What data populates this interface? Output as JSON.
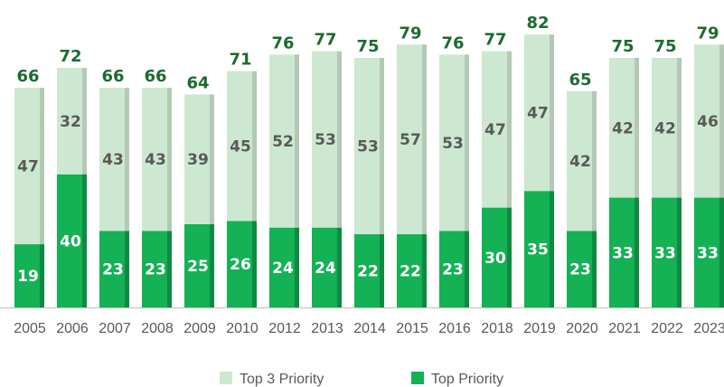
{
  "chart_data": {
    "type": "bar",
    "stacked": true,
    "categories": [
      "2005",
      "2006",
      "2007",
      "2008",
      "2009",
      "2010",
      "2012",
      "2013",
      "2014",
      "2015",
      "2016",
      "2018",
      "2019",
      "2020",
      "2021",
      "2022",
      "2023"
    ],
    "series": [
      {
        "name": "Top Priority",
        "values": [
          19,
          40,
          23,
          23,
          25,
          26,
          24,
          24,
          22,
          22,
          23,
          30,
          35,
          23,
          33,
          33,
          33
        ],
        "color": "#14b155",
        "shade": "#0e8a42",
        "label_color": "#ffffff"
      },
      {
        "name": "Top 3 Priority",
        "values": [
          47,
          32,
          43,
          43,
          39,
          45,
          52,
          53,
          53,
          57,
          53,
          47,
          47,
          42,
          42,
          42,
          46
        ],
        "color": "#cde8d0",
        "shade": "#b3c9b5",
        "label_color": "#595959"
      }
    ],
    "totals": [
      66,
      72,
      66,
      66,
      64,
      71,
      76,
      77,
      75,
      79,
      76,
      77,
      82,
      65,
      75,
      75,
      79
    ],
    "total_label_color": "#1d6b2f",
    "ylim": [
      0,
      85
    ],
    "grid": false,
    "legend": {
      "position": "bottom",
      "entries": [
        "Top 3 Priority",
        "Top Priority"
      ]
    }
  }
}
